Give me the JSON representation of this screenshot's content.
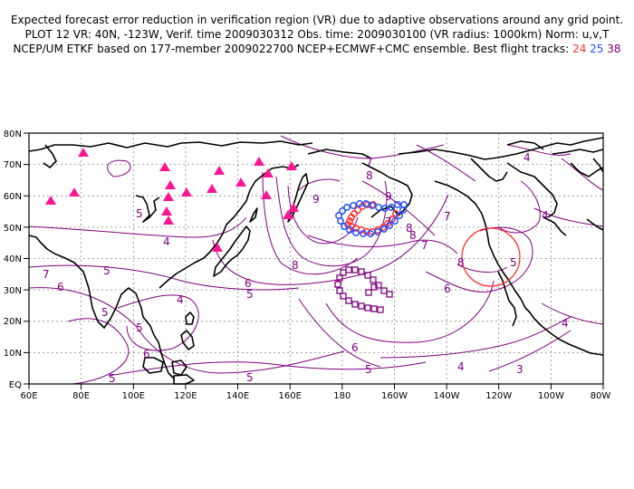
{
  "header": {
    "line1": "Expected forecast error reduction in verification region (VR) due to adaptive observations around any grid point.",
    "line2": "PLOT 12 VR: 40N, -123W, Verif. time 2009030312 Obs. time: 2009030100 (VR radius: 1000km) Norm: u,v,T",
    "line3_prefix": "NCEP/UM ETKF based on 177-member 2009022700 NCEP+ECMWF+CMC ensemble. Best flight tracks:",
    "track_24": "24",
    "track_25": "25",
    "track_38": "38"
  },
  "axes": {
    "lon_labels": [
      "60E",
      "80E",
      "100E",
      "120E",
      "140E",
      "160E",
      "180",
      "160W",
      "140W",
      "120W",
      "100W",
      "80W"
    ],
    "lat_labels": [
      "EQ",
      "10N",
      "20N",
      "30N",
      "40N",
      "50N",
      "60N",
      "70N",
      "80N"
    ]
  },
  "contour_labels": [
    "7",
    "8",
    "9",
    "5",
    "4",
    "6",
    "5",
    "7",
    "6",
    "4",
    "5",
    "5",
    "6",
    "5",
    "5",
    "7",
    "8",
    "8",
    "9",
    "8",
    "7",
    "6",
    "5",
    "5",
    "4",
    "4",
    "3",
    "4",
    "4",
    "6",
    "5",
    "7",
    "8"
  ],
  "colors": {
    "contour": "#800080",
    "track_24": "#ff3030",
    "track_25": "#2050ff",
    "track_38": "#800080",
    "triangle": "#ff1493",
    "vr_circle": "#ff3030"
  }
}
